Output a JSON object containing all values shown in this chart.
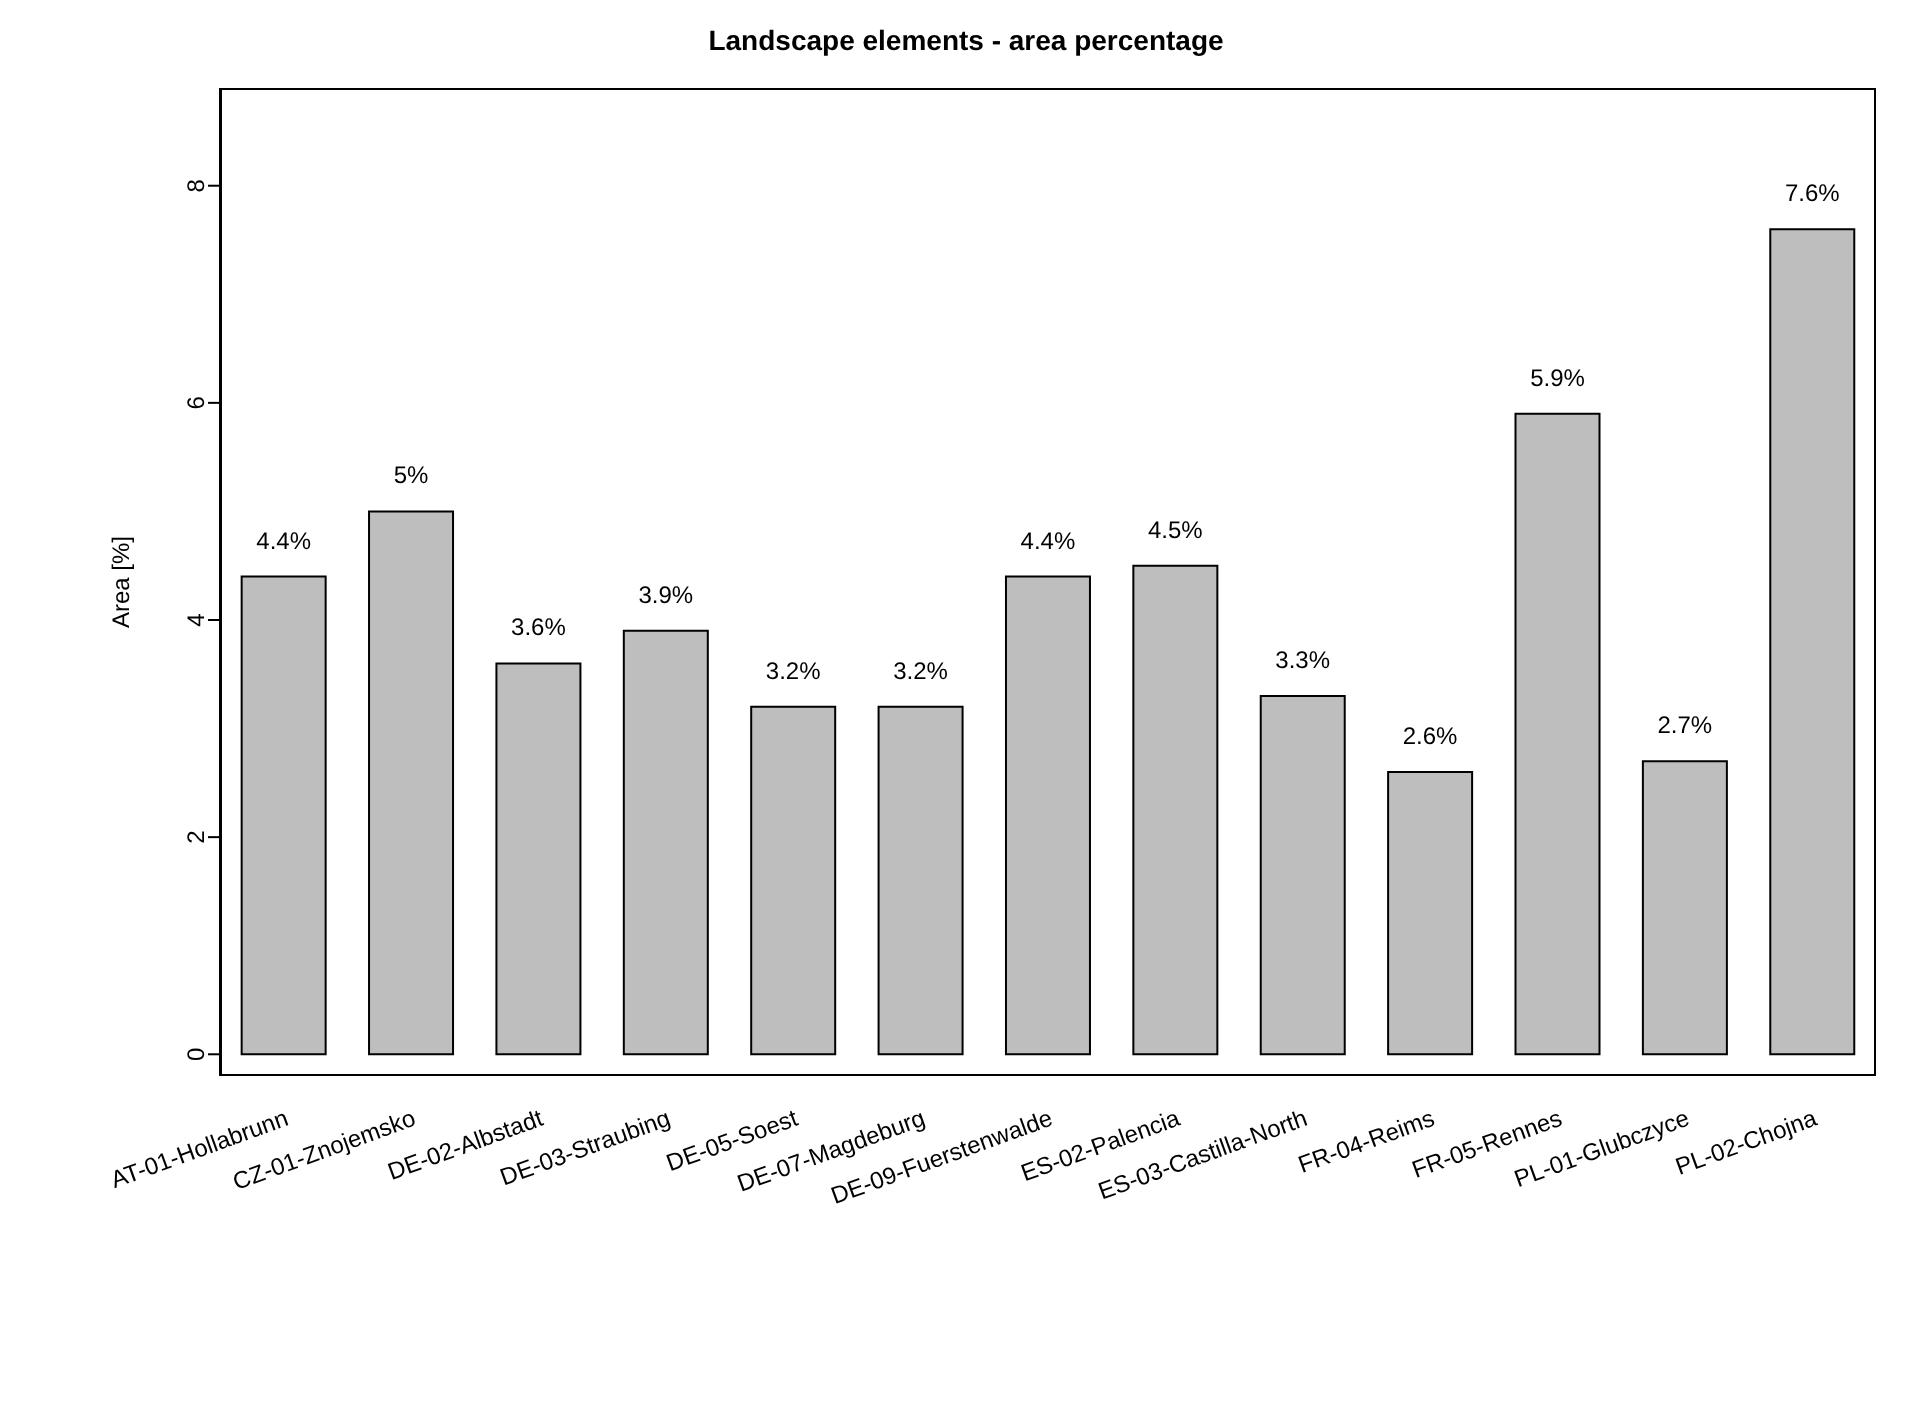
{
  "chart_data": {
    "type": "bar",
    "title": "Landscape elements - area percentage",
    "ylabel": "Area [%]",
    "categories": [
      "AT-01-Hollabrunn",
      "CZ-01-Znojemsko",
      "DE-02-Albstadt",
      "DE-03-Straubing",
      "DE-05-Soest",
      "DE-07-Magdeburg",
      "DE-09-Fuerstenwalde",
      "ES-02-Palencia",
      "ES-03-Castilla-North",
      "FR-04-Reims",
      "FR-05-Rennes",
      "PL-01-Glubczyce",
      "PL-02-Chojna"
    ],
    "values": [
      4.4,
      5,
      3.6,
      3.9,
      3.2,
      3.2,
      4.4,
      4.5,
      3.3,
      2.6,
      5.9,
      2.7,
      7.6
    ],
    "value_labels": [
      "4.4%",
      "5%",
      "3.6%",
      "3.9%",
      "3.2%",
      "3.2%",
      "4.4%",
      "4.5%",
      "3.3%",
      "2.6%",
      "5.9%",
      "2.7%",
      "7.6%"
    ],
    "color": "#bebebe",
    "ylim": [
      -0.2,
      8.9
    ],
    "yticks": [
      0,
      2,
      4,
      6,
      8
    ],
    "grid": false,
    "legend": false
  }
}
